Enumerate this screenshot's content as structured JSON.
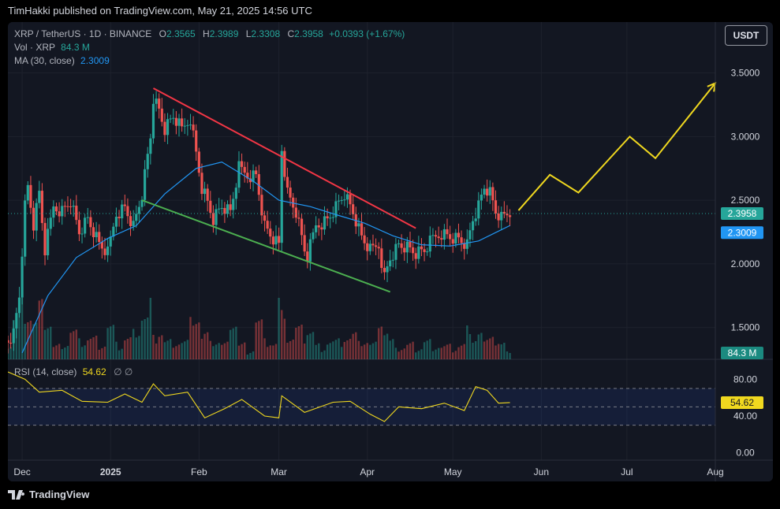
{
  "published_by": "TimHakki published on TradingView.com, May 21, 2025 14:56 UTC",
  "legend": {
    "symbol": "XRP / TetherUS · 1D · BINANCE",
    "open_label": "O",
    "open": "2.3565",
    "high_label": "H",
    "high": "2.3989",
    "low_label": "L",
    "low": "2.3308",
    "close_label": "C",
    "close": "2.3958",
    "change": "+0.0393 (+1.67%)",
    "volume_label": "Vol · XRP",
    "volume_value": "84.3 M",
    "ma_label": "MA (30, close)",
    "ma_value": "2.3009",
    "rsi_label": "RSI (14, close)",
    "rsi_value": "54.62",
    "rsi_extra": "∅ ∅"
  },
  "currency_button": "USDT",
  "price_axis": [
    "3.5000",
    "3.0000",
    "2.5000",
    "2.0000",
    "1.5000"
  ],
  "rsi_axis": [
    "80.00",
    "40.00",
    "0.00"
  ],
  "badges": {
    "last_price": "2.3958",
    "ma": "2.3009",
    "volume": "84.3 M",
    "rsi": "54.62"
  },
  "time_axis": [
    "Dec",
    "2025",
    "Feb",
    "Mar",
    "Apr",
    "May",
    "Jun",
    "Jul",
    "Aug"
  ],
  "brand": "TradingView",
  "colors": {
    "up": "#26a69a",
    "down": "#ef5350",
    "ma": "#2196f3",
    "resistance": "#f23645",
    "support": "#4caf50",
    "projection": "#f0d81f",
    "rsi": "#f0d81f"
  },
  "chart_data": [
    {
      "type": "candlestick",
      "title": "XRP / TetherUS · 1D · BINANCE",
      "ylim": [
        1.25,
        3.9
      ],
      "x_range": [
        "2024-11-26",
        "2025-08-01"
      ],
      "last": {
        "open": 2.3565,
        "high": 2.3989,
        "low": 2.3308,
        "close": 2.3958,
        "change": "+0.0393 (+1.67%)"
      },
      "close_series": [
        [
          "2024-11-26",
          1.4
        ],
        [
          "2024-11-28",
          1.45
        ],
        [
          "2024-11-30",
          1.75
        ],
        [
          "2024-12-02",
          2.45
        ],
        [
          "2024-12-03",
          2.6
        ],
        [
          "2024-12-05",
          2.3
        ],
        [
          "2024-12-07",
          2.55
        ],
        [
          "2024-12-09",
          2.1
        ],
        [
          "2024-12-12",
          2.45
        ],
        [
          "2024-12-15",
          2.42
        ],
        [
          "2024-12-18",
          2.5
        ],
        [
          "2024-12-21",
          2.25
        ],
        [
          "2024-12-24",
          2.35
        ],
        [
          "2024-12-28",
          2.15
        ],
        [
          "2024-12-31",
          2.08
        ],
        [
          "2025-01-03",
          2.4
        ],
        [
          "2025-01-06",
          2.45
        ],
        [
          "2025-01-09",
          2.3
        ],
        [
          "2025-01-12",
          2.55
        ],
        [
          "2025-01-15",
          3.0
        ],
        [
          "2025-01-16",
          3.3
        ],
        [
          "2025-01-18",
          3.2
        ],
        [
          "2025-01-20",
          3.05
        ],
        [
          "2025-01-23",
          3.15
        ],
        [
          "2025-01-26",
          3.05
        ],
        [
          "2025-01-29",
          3.15
        ],
        [
          "2025-02-02",
          2.6
        ],
        [
          "2025-02-03",
          2.55
        ],
        [
          "2025-02-06",
          2.35
        ],
        [
          "2025-02-09",
          2.45
        ],
        [
          "2025-02-12",
          2.4
        ],
        [
          "2025-02-15",
          2.75
        ],
        [
          "2025-02-18",
          2.7
        ],
        [
          "2025-02-21",
          2.7
        ],
        [
          "2025-02-24",
          2.3
        ],
        [
          "2025-02-27",
          2.2
        ],
        [
          "2025-03-01",
          2.15
        ],
        [
          "2025-03-02",
          2.9
        ],
        [
          "2025-03-04",
          2.55
        ],
        [
          "2025-03-07",
          2.4
        ],
        [
          "2025-03-10",
          2.1
        ],
        [
          "2025-03-11",
          2.05
        ],
        [
          "2025-03-14",
          2.3
        ],
        [
          "2025-03-18",
          2.35
        ],
        [
          "2025-03-21",
          2.45
        ],
        [
          "2025-03-24",
          2.55
        ],
        [
          "2025-03-27",
          2.4
        ],
        [
          "2025-03-30",
          2.2
        ],
        [
          "2025-04-02",
          2.1
        ],
        [
          "2025-04-05",
          2.15
        ],
        [
          "2025-04-07",
          1.9
        ],
        [
          "2025-04-09",
          2.05
        ],
        [
          "2025-04-12",
          2.15
        ],
        [
          "2025-04-15",
          2.13
        ],
        [
          "2025-04-18",
          2.08
        ],
        [
          "2025-04-21",
          2.1
        ],
        [
          "2025-04-24",
          2.2
        ],
        [
          "2025-04-27",
          2.25
        ],
        [
          "2025-04-30",
          2.22
        ],
        [
          "2025-05-03",
          2.2
        ],
        [
          "2025-05-06",
          2.15
        ],
        [
          "2025-05-08",
          2.35
        ],
        [
          "2025-05-10",
          2.45
        ],
        [
          "2025-05-12",
          2.6
        ],
        [
          "2025-05-14",
          2.55
        ],
        [
          "2025-05-16",
          2.4
        ],
        [
          "2025-05-18",
          2.35
        ],
        [
          "2025-05-21",
          2.3958
        ]
      ],
      "ma30": [
        [
          "2024-12-01",
          1.3
        ],
        [
          "2024-12-10",
          1.75
        ],
        [
          "2024-12-20",
          2.05
        ],
        [
          "2024-12-31",
          2.2
        ],
        [
          "2025-01-10",
          2.3
        ],
        [
          "2025-01-20",
          2.55
        ],
        [
          "2025-01-31",
          2.75
        ],
        [
          "2025-02-09",
          2.8
        ],
        [
          "2025-02-20",
          2.65
        ],
        [
          "2025-03-01",
          2.5
        ],
        [
          "2025-03-12",
          2.45
        ],
        [
          "2025-03-22",
          2.38
        ],
        [
          "2025-03-31",
          2.32
        ],
        [
          "2025-04-10",
          2.22
        ],
        [
          "2025-04-20",
          2.15
        ],
        [
          "2025-04-30",
          2.14
        ],
        [
          "2025-05-10",
          2.18
        ],
        [
          "2025-05-21",
          2.3009
        ]
      ],
      "annotations": [
        {
          "kind": "resistance",
          "from": [
            "2025-01-16",
            3.38
          ],
          "to": [
            "2025-04-18",
            2.28
          ]
        },
        {
          "kind": "support",
          "from": [
            "2025-01-12",
            2.5
          ],
          "to": [
            "2025-04-09",
            1.78
          ]
        },
        {
          "kind": "projection",
          "points": [
            [
              "2025-05-24",
              2.42
            ],
            [
              "2025-06-04",
              2.7
            ],
            [
              "2025-06-14",
              2.56
            ],
            [
              "2025-07-02",
              3.0
            ],
            [
              "2025-07-11",
              2.83
            ],
            [
              "2025-08-01",
              3.42
            ]
          ]
        }
      ]
    },
    {
      "type": "bar",
      "title": "Vol · XRP",
      "last_value": "84.3 M"
    },
    {
      "type": "line",
      "title": "RSI (14, close)",
      "ylim": [
        -8,
        100
      ],
      "bands": [
        70,
        50,
        30
      ],
      "series": [
        [
          "2024-11-26",
          88
        ],
        [
          "2024-12-02",
          80
        ],
        [
          "2024-12-07",
          66
        ],
        [
          "2024-12-15",
          68
        ],
        [
          "2024-12-22",
          56
        ],
        [
          "2024-12-31",
          55
        ],
        [
          "2025-01-06",
          64
        ],
        [
          "2025-01-12",
          55
        ],
        [
          "2025-01-16",
          75
        ],
        [
          "2025-01-20",
          62
        ],
        [
          "2025-01-28",
          66
        ],
        [
          "2025-02-03",
          38
        ],
        [
          "2025-02-10",
          48
        ],
        [
          "2025-02-16",
          58
        ],
        [
          "2025-02-24",
          40
        ],
        [
          "2025-03-01",
          38
        ],
        [
          "2025-03-02",
          62
        ],
        [
          "2025-03-10",
          44
        ],
        [
          "2025-03-20",
          55
        ],
        [
          "2025-03-26",
          56
        ],
        [
          "2025-04-02",
          42
        ],
        [
          "2025-04-07",
          34
        ],
        [
          "2025-04-12",
          50
        ],
        [
          "2025-04-20",
          48
        ],
        [
          "2025-04-28",
          54
        ],
        [
          "2025-05-05",
          46
        ],
        [
          "2025-05-09",
          72
        ],
        [
          "2025-05-13",
          68
        ],
        [
          "2025-05-17",
          54
        ],
        [
          "2025-05-21",
          54.62
        ]
      ]
    }
  ]
}
